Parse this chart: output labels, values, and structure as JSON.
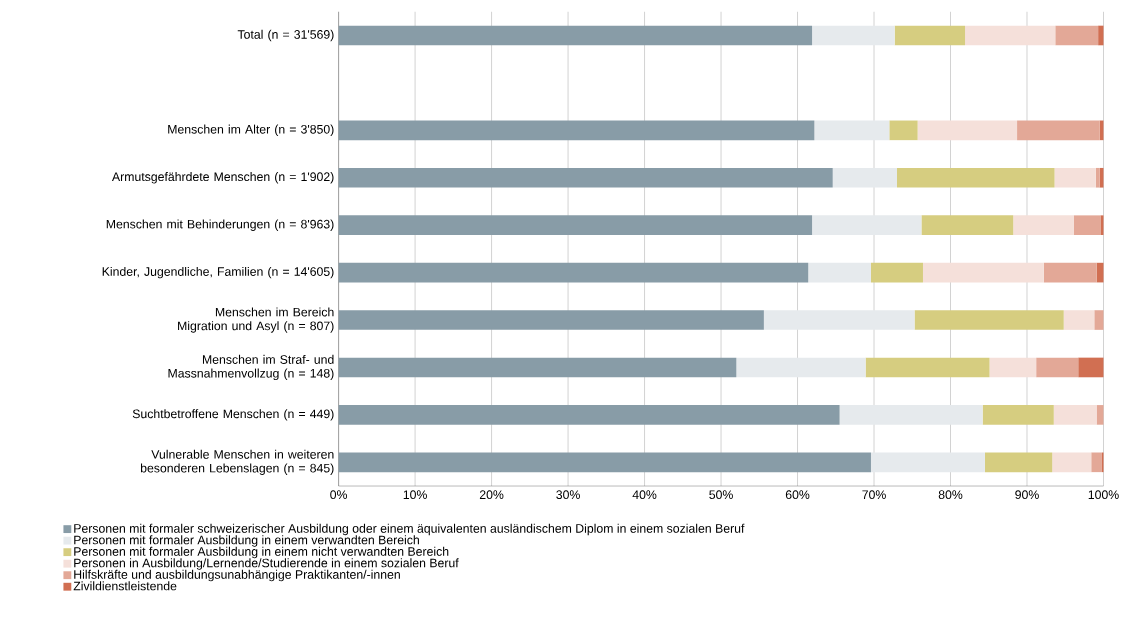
{
  "chart_data": {
    "type": "bar",
    "orientation": "horizontal",
    "stacked": true,
    "grid": "x",
    "legend": "bottom",
    "categories": [
      "Total (n = 31'569)",
      null,
      "Menschen im Alter (n = 3'850)",
      "Armutsgefährdete Menschen (n = 1'902)",
      "Menschen mit Behinderungen (n = 8'963)",
      "Kinder, Jugendliche, Familien (n = 14'605)",
      "Menschen im Bereich Migration und Asyl (n = 807)",
      "Menschen im Straf- und Massnahmenvollzug (n = 148)",
      "Suchtbetroffene Menschen (n = 449)",
      "Vulnerable Menschen in weiteren besonderen Lebenslagen (n = 845)"
    ],
    "xlim": [
      0,
      100
    ],
    "xticks": [
      {
        "value": 0,
        "label": "0%"
      },
      {
        "value": 10,
        "label": "10%"
      },
      {
        "value": 20,
        "label": "20%"
      },
      {
        "value": 30,
        "label": "30%"
      },
      {
        "value": 40,
        "label": "40%"
      },
      {
        "value": 50,
        "label": "50%"
      },
      {
        "value": 60,
        "label": "60%"
      },
      {
        "value": 70,
        "label": "70%"
      },
      {
        "value": 80,
        "label": "80%"
      },
      {
        "value": 90,
        "label": "90%"
      },
      {
        "value": 100,
        "label": "100%"
      }
    ],
    "series": [
      {
        "name": "Personen mit formaler schweizerischer Ausbildung oder einem äquivalenten ausländischem Diplom in einem sozialen Beruf",
        "color": "#889ca7",
        "values": [
          61.9,
          null,
          62.2,
          64.6,
          61.9,
          61.4,
          55.6,
          52.0,
          65.5,
          69.6
        ]
      },
      {
        "name": "Personen mit formaler Ausbildung in einem verwandten Bereich",
        "color": "#e6eaed",
        "values": [
          10.8,
          null,
          9.8,
          8.4,
          14.3,
          8.2,
          19.7,
          16.9,
          18.7,
          14.9
        ]
      },
      {
        "name": "Personen mit formaler Ausbildung in einem nicht verwandten Bereich",
        "color": "#d6cd80",
        "values": [
          9.2,
          null,
          3.7,
          20.6,
          12.0,
          6.8,
          19.5,
          16.2,
          9.3,
          8.8
        ]
      },
      {
        "name": "Personen in Ausbildung/Lernende/Studierende in einem sozialen Beruf",
        "color": "#f5e0da",
        "values": [
          11.8,
          null,
          13.0,
          5.4,
          7.9,
          15.8,
          4.0,
          6.1,
          5.6,
          5.1
        ]
      },
      {
        "name": "Hilfskräfte und ausbildungsunabhängige Praktikanten/-innen",
        "color": "#e3a897",
        "values": [
          5.6,
          null,
          10.8,
          0.5,
          3.5,
          6.9,
          1.2,
          5.5,
          0.9,
          1.4
        ]
      },
      {
        "name": "Zivildienstleistende",
        "color": "#d16f52",
        "values": [
          0.7,
          null,
          0.5,
          0.5,
          0.4,
          0.9,
          0.0,
          3.3,
          0.0,
          0.2
        ]
      }
    ]
  }
}
